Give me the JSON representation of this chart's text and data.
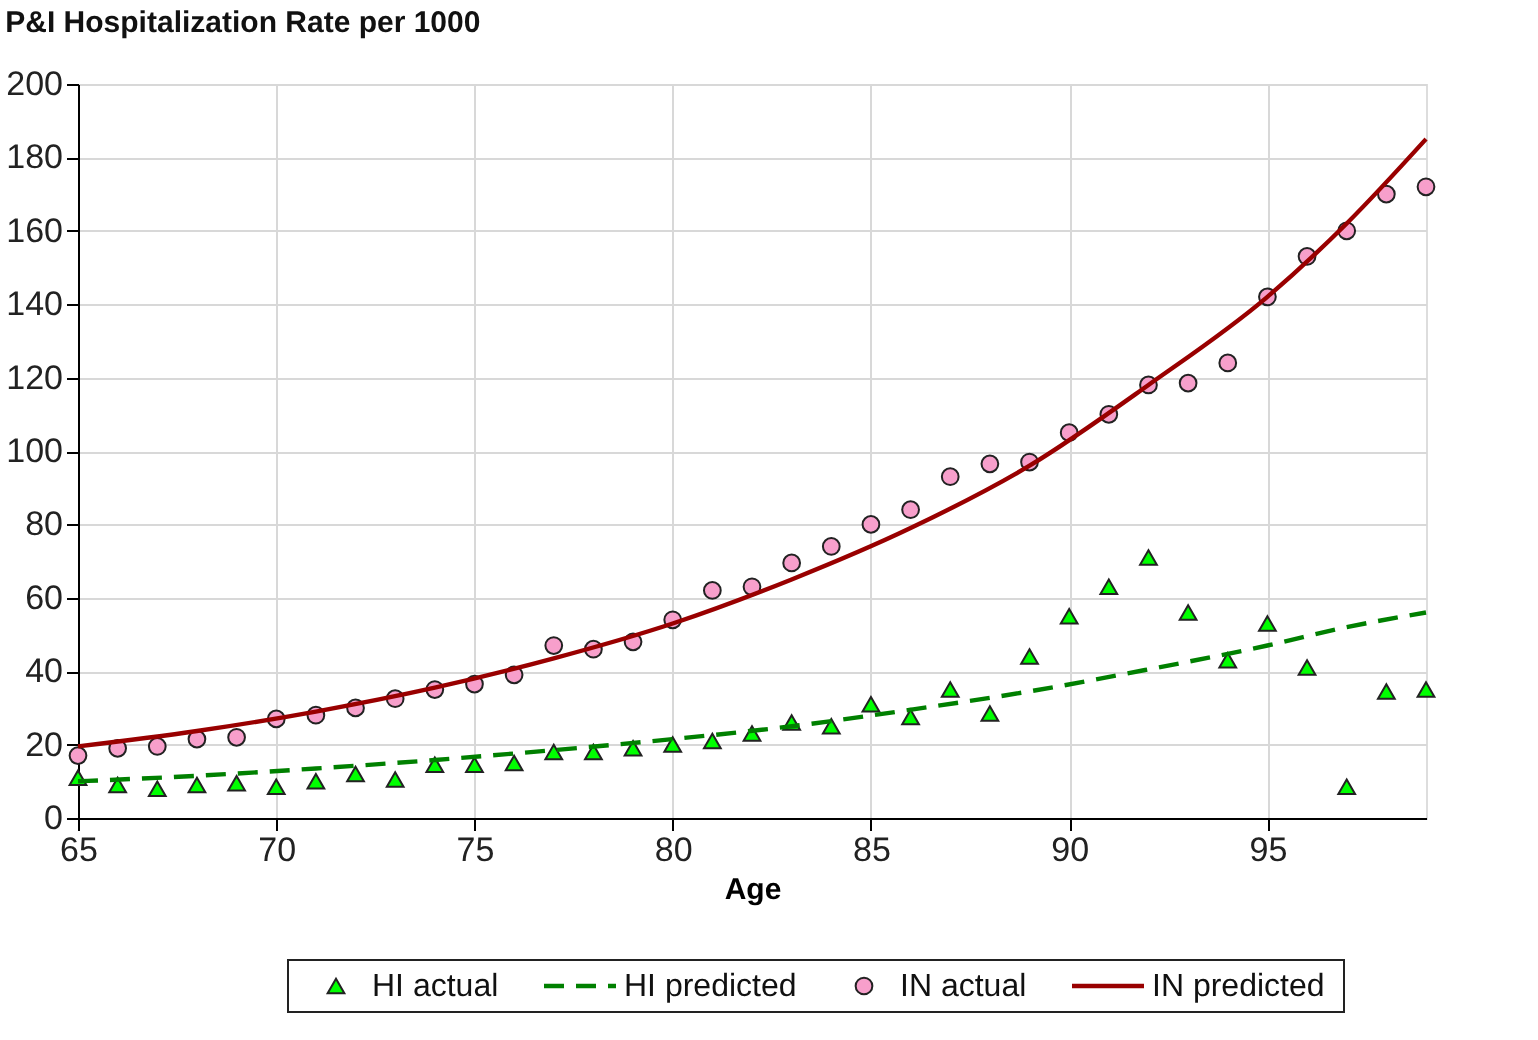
{
  "chart_data": {
    "type": "scatter",
    "title": "P&I Hospitalization Rate per 1000",
    "xlabel": "Age",
    "xlim": [
      65,
      99
    ],
    "xticks": [
      65,
      70,
      75,
      80,
      85,
      90,
      95
    ],
    "ylim": [
      0,
      200
    ],
    "yticks": [
      0,
      20,
      40,
      60,
      80,
      100,
      120,
      140,
      160,
      180,
      200
    ],
    "grid": true,
    "legend": "bottom",
    "series": [
      {
        "name": "HI actual",
        "marker": "triangle",
        "color": "#00ff00",
        "x": [
          65,
          66,
          67,
          68,
          69,
          70,
          71,
          72,
          73,
          74,
          75,
          76,
          77,
          78,
          79,
          80,
          81,
          82,
          83,
          84,
          85,
          86,
          87,
          88,
          89,
          90,
          91,
          92,
          93,
          94,
          95,
          96,
          97,
          98,
          99
        ],
        "values": [
          11,
          9,
          8,
          9,
          9.5,
          8.5,
          10,
          12,
          10.5,
          14.5,
          14.5,
          15,
          18,
          18,
          19,
          20,
          21,
          23,
          26,
          25,
          31,
          27.5,
          35,
          28.5,
          44,
          55,
          63,
          71,
          56,
          43,
          53,
          41,
          8.5,
          34.5,
          35
        ]
      },
      {
        "name": "HI predicted",
        "type": "line",
        "marker": "none",
        "line_style": "dashed",
        "color": "#008000",
        "x": [
          65,
          68,
          71,
          74,
          77,
          80,
          83,
          86,
          89,
          92,
          95,
          97,
          99
        ],
        "values": [
          10,
          11.5,
          13.5,
          15.8,
          18.5,
          21.5,
          25,
          29.5,
          34.5,
          40.5,
          47,
          52,
          56
        ]
      },
      {
        "name": "IN actual",
        "marker": "circle",
        "color": "#f79fcb",
        "x": [
          65,
          66,
          67,
          68,
          69,
          70,
          71,
          72,
          73,
          74,
          75,
          76,
          77,
          78,
          79,
          80,
          81,
          82,
          83,
          84,
          85,
          86,
          87,
          88,
          89,
          90,
          91,
          92,
          93,
          94,
          95,
          96,
          97,
          98,
          99
        ],
        "values": [
          17,
          19,
          19.5,
          21.5,
          22,
          27,
          28,
          30,
          32.5,
          35,
          36.5,
          39,
          47,
          46,
          48,
          54,
          62,
          63,
          69.5,
          74,
          80,
          84,
          93,
          96.5,
          97,
          105,
          110,
          118,
          118.5,
          124,
          142,
          153,
          160,
          170,
          172
        ]
      },
      {
        "name": "IN predicted",
        "type": "line",
        "marker": "none",
        "line_style": "solid",
        "color": "#990000",
        "x": [
          65,
          68,
          71,
          74,
          77,
          80,
          83,
          86,
          89,
          92,
          95,
          97,
          99
        ],
        "values": [
          19.5,
          23.7,
          29,
          35.5,
          43.5,
          53,
          65,
          79,
          96,
          118,
          142,
          162,
          185
        ]
      }
    ]
  }
}
